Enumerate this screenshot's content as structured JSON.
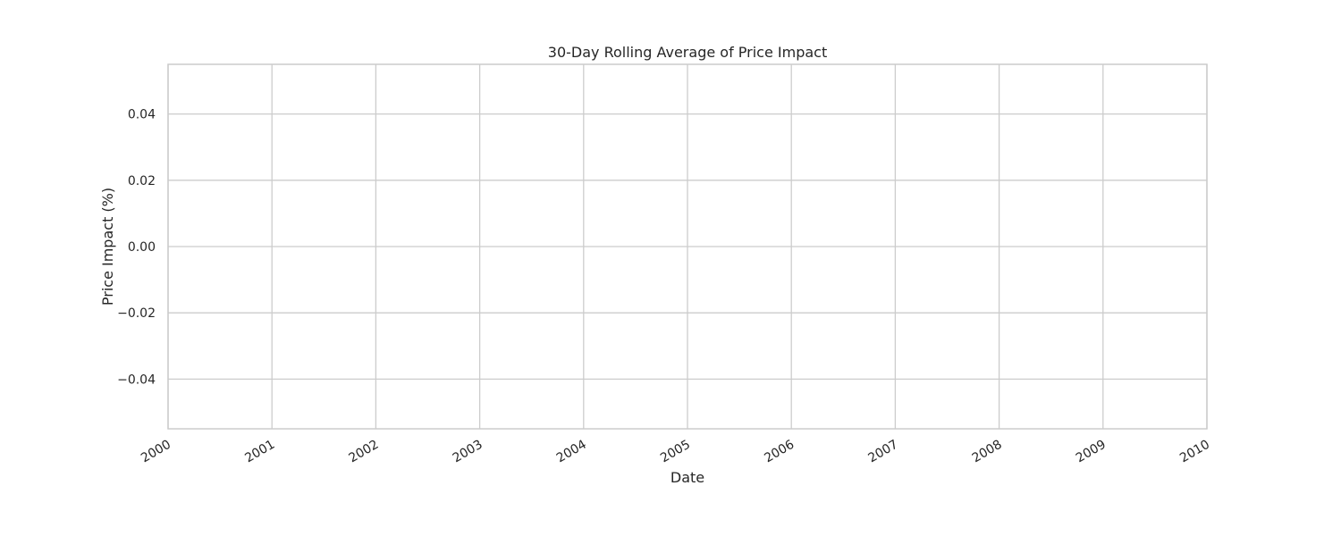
{
  "chart_data": {
    "type": "line",
    "title": "30-Day Rolling Average of Price Impact",
    "xlabel": "Date",
    "ylabel": "Price Impact (%)",
    "x_ticks": [
      "2000",
      "2001",
      "2002",
      "2003",
      "2004",
      "2005",
      "2006",
      "2007",
      "2008",
      "2009",
      "2010"
    ],
    "y_ticks": [
      "0.04",
      "0.02",
      "0.00",
      "−0.02",
      "−0.04"
    ],
    "y_tick_values": [
      0.04,
      0.02,
      0.0,
      -0.02,
      -0.04
    ],
    "xlim": [
      "2000",
      "2010"
    ],
    "ylim": [
      -0.055,
      0.055
    ],
    "grid": true,
    "series": [
      {
        "values": []
      }
    ],
    "colors": {
      "grid": "#cccccc",
      "spine": "#cccccc",
      "text": "#262626",
      "background": "#ffffff"
    }
  }
}
